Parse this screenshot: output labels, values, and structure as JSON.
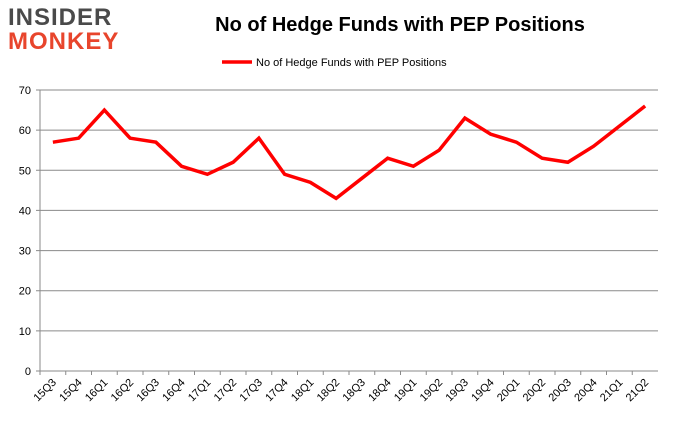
{
  "logo": {
    "line1": "INSIDER",
    "line2": "MONKEY"
  },
  "chart_data": {
    "type": "line",
    "title": "No of Hedge Funds with PEP Positions",
    "xlabel": "",
    "ylabel": "",
    "ylim": [
      0,
      70
    ],
    "yticks": [
      0,
      10,
      20,
      30,
      40,
      50,
      60,
      70
    ],
    "grid": true,
    "legend_position": "top-center",
    "categories": [
      "15Q3",
      "15Q4",
      "16Q1",
      "16Q2",
      "16Q3",
      "16Q4",
      "17Q1",
      "17Q2",
      "17Q3",
      "17Q4",
      "18Q1",
      "18Q2",
      "18Q3",
      "18Q4",
      "19Q1",
      "19Q2",
      "19Q3",
      "19Q4",
      "20Q1",
      "20Q2",
      "20Q3",
      "20Q4",
      "21Q1",
      "21Q2"
    ],
    "series": [
      {
        "name": "No of Hedge Funds with PEP Positions",
        "color": "#ff0000",
        "values": [
          57,
          58,
          65,
          58,
          57,
          51,
          49,
          52,
          58,
          49,
          47,
          43,
          48,
          53,
          51,
          55,
          63,
          59,
          57,
          53,
          52,
          56,
          61,
          66
        ]
      }
    ]
  }
}
